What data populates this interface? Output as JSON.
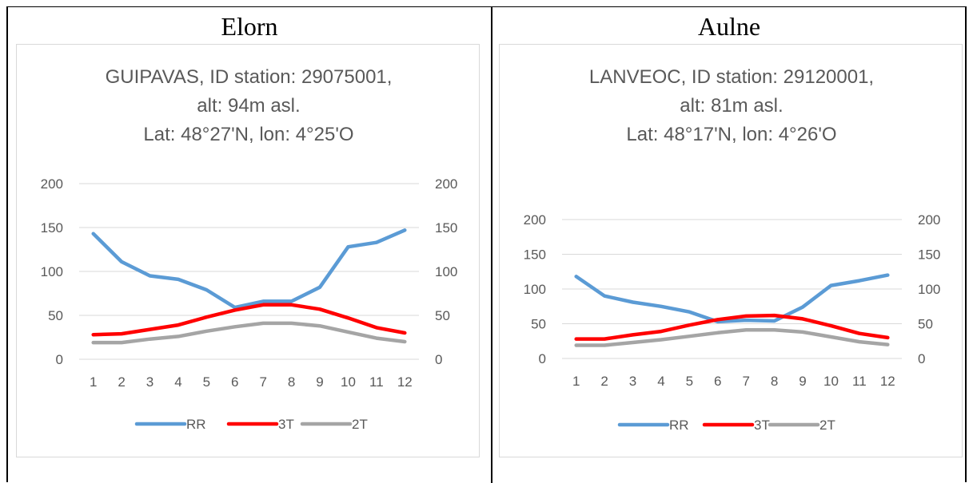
{
  "panels": [
    {
      "title": "Elorn"
    },
    {
      "title": "Aulne"
    }
  ],
  "chart_data": [
    {
      "type": "line",
      "title": [
        "GUIPAVAS, ID station: 29075001,",
        "alt: 94m asl.",
        "Lat: 48°27'N, lon: 4°25'O"
      ],
      "categories": [
        "1",
        "2",
        "3",
        "4",
        "5",
        "6",
        "7",
        "8",
        "9",
        "10",
        "11",
        "12"
      ],
      "ylim": [
        0,
        200
      ],
      "yticks": [
        0,
        50,
        100,
        150,
        200
      ],
      "y2ticks": [
        0,
        50,
        100,
        150,
        200
      ],
      "grid": true,
      "legend_position": "bottom",
      "series": [
        {
          "name": "RR",
          "color": "#5b9bd5",
          "values": [
            143,
            111,
            95,
            91,
            79,
            59,
            66,
            66,
            82,
            128,
            133,
            147
          ]
        },
        {
          "name": "3T",
          "color": "#ff0000",
          "values": [
            28,
            29,
            34,
            39,
            48,
            56,
            62,
            62,
            57,
            47,
            36,
            30
          ]
        },
        {
          "name": "2T",
          "color": "#a5a5a5",
          "values": [
            19,
            19,
            23,
            26,
            32,
            37,
            41,
            41,
            38,
            31,
            24,
            20
          ]
        }
      ]
    },
    {
      "type": "line",
      "title": [
        "LANVEOC, ID station: 29120001,",
        "alt: 81m asl.",
        "Lat: 48°17'N, lon: 4°26'O"
      ],
      "categories": [
        "1",
        "2",
        "3",
        "4",
        "5",
        "6",
        "7",
        "8",
        "9",
        "10",
        "11",
        "12"
      ],
      "ylim": [
        0,
        200
      ],
      "yticks": [
        0,
        50,
        100,
        150,
        200
      ],
      "y2ticks": [
        0,
        50,
        100,
        150,
        200
      ],
      "grid": true,
      "legend_position": "bottom",
      "series": [
        {
          "name": "RR",
          "color": "#5b9bd5",
          "values": [
            118,
            90,
            81,
            75,
            67,
            53,
            55,
            54,
            74,
            105,
            112,
            120
          ]
        },
        {
          "name": "3T",
          "color": "#ff0000",
          "values": [
            28,
            28,
            34,
            39,
            48,
            56,
            61,
            62,
            57,
            47,
            36,
            30
          ]
        },
        {
          "name": "2T",
          "color": "#a5a5a5",
          "values": [
            19,
            19,
            23,
            27,
            32,
            37,
            41,
            41,
            38,
            31,
            24,
            20
          ]
        }
      ]
    }
  ]
}
